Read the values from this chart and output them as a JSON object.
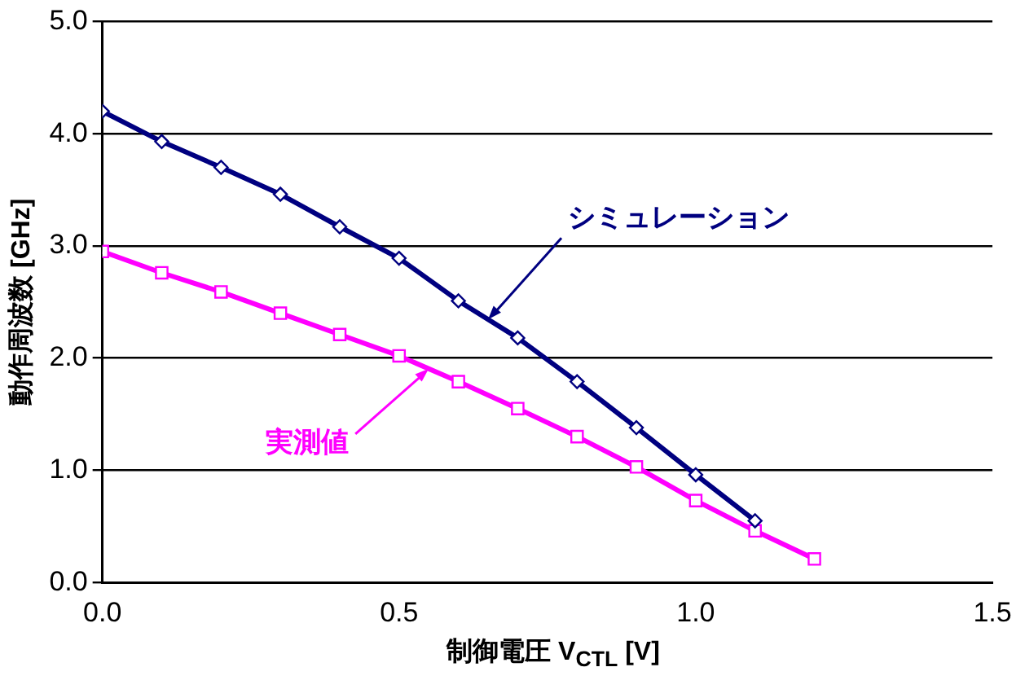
{
  "chart_data": {
    "type": "line",
    "xlabel": "制御電圧 V$_{CTL}$ [V]",
    "ylabel": "動作周波数 [GHz]",
    "x": [
      0,
      0.1,
      0.2,
      0.3,
      0.4,
      0.5,
      0.6,
      0.7,
      0.8,
      0.9,
      1.0,
      1.1,
      1.2
    ],
    "series": [
      {
        "name": "シミュレーション",
        "color": "#000080",
        "marker": "diamond",
        "x": [
          0,
          0.1,
          0.2,
          0.3,
          0.4,
          0.5,
          0.6,
          0.7,
          0.8,
          0.9,
          1.0,
          1.1
        ],
        "values": [
          4.2,
          3.93,
          3.7,
          3.46,
          3.17,
          2.89,
          2.51,
          2.18,
          1.79,
          1.38,
          0.96,
          0.55
        ]
      },
      {
        "name": "実測値",
        "color": "#ff00ff",
        "marker": "square",
        "values": [
          2.95,
          2.76,
          2.59,
          2.4,
          2.21,
          2.02,
          1.79,
          1.55,
          1.3,
          1.03,
          0.73,
          0.46,
          0.21
        ]
      }
    ],
    "xlim": [
      0,
      1.5
    ],
    "xticks": [
      {
        "value": 0,
        "label": "0.0"
      },
      {
        "value": 0.5,
        "label": "0.5"
      },
      {
        "value": 1,
        "label": "1.0"
      },
      {
        "value": 1.5,
        "label": "1.5"
      }
    ],
    "ylim": [
      0,
      5
    ],
    "yticks": [
      {
        "value": 0,
        "label": "0.0"
      },
      {
        "value": 1,
        "label": "1.0"
      },
      {
        "value": 2,
        "label": "2.0"
      },
      {
        "value": 3,
        "label": "3.0"
      },
      {
        "value": 4,
        "label": "4.0"
      },
      {
        "value": 5,
        "label": "5.0"
      }
    ],
    "grid": "y",
    "legend": false,
    "line_style": "solid"
  }
}
